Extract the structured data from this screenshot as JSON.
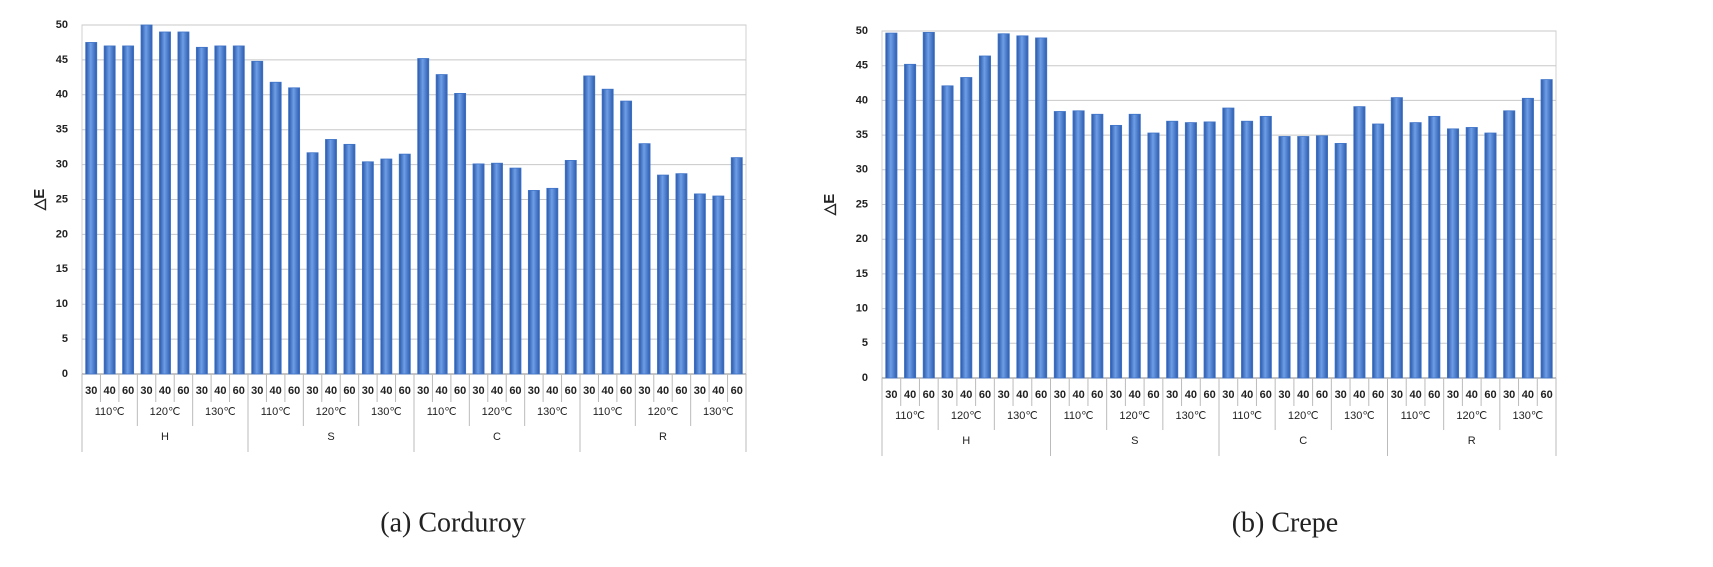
{
  "chart_data": [
    {
      "type": "bar",
      "caption": "(a)  Corduroy",
      "y_label": "△E",
      "categories": [
        "30",
        "40",
        "60",
        "30",
        "40",
        "60",
        "30",
        "40",
        "60",
        "30",
        "40",
        "60",
        "30",
        "40",
        "60",
        "30",
        "40",
        "60",
        "30",
        "40",
        "60",
        "30",
        "40",
        "60",
        "30",
        "40",
        "60",
        "30",
        "40",
        "60",
        "30",
        "40",
        "60",
        "30",
        "40",
        "60"
      ],
      "subcategories": [
        "110℃",
        "120℃",
        "130℃",
        "110℃",
        "120℃",
        "130℃",
        "110℃",
        "120℃",
        "130℃",
        "110℃",
        "120℃",
        "130℃"
      ],
      "groups": [
        "H",
        "S",
        "C",
        "R"
      ],
      "values": [
        47.5,
        47,
        47,
        50,
        49,
        49,
        46.8,
        47,
        47,
        44.8,
        41.8,
        41,
        31.7,
        33.6,
        32.9,
        30.4,
        30.8,
        31.5,
        45.2,
        42.9,
        40.2,
        30.1,
        30.2,
        29.5,
        26.3,
        26.6,
        30.6,
        42.7,
        40.8,
        39.1,
        33,
        28.5,
        28.7,
        25.8,
        25.5,
        31
      ],
      "color": "#3f74c8",
      "ylim": [
        0,
        50
      ],
      "yticks": [
        0,
        5,
        10,
        15,
        20,
        25,
        30,
        35,
        40,
        45,
        50
      ],
      "grid": true
    },
    {
      "type": "bar",
      "caption": "(b)  Crepe",
      "y_label": "△E",
      "categories": [
        "30",
        "40",
        "60",
        "30",
        "40",
        "60",
        "30",
        "40",
        "60",
        "30",
        "40",
        "60",
        "30",
        "40",
        "60",
        "30",
        "40",
        "60",
        "30",
        "40",
        "60",
        "30",
        "40",
        "60",
        "30",
        "40",
        "60",
        "30",
        "40",
        "60",
        "30",
        "40",
        "60",
        "30",
        "40",
        "60"
      ],
      "subcategories": [
        "110℃",
        "120℃",
        "130℃",
        "110℃",
        "120℃",
        "130℃",
        "110℃",
        "120℃",
        "130℃",
        "110℃",
        "120℃",
        "130℃"
      ],
      "groups": [
        "H",
        "S",
        "C",
        "R"
      ],
      "values": [
        49.7,
        45.2,
        49.8,
        42.1,
        43.3,
        46.4,
        49.6,
        49.3,
        49,
        38.4,
        38.5,
        38,
        36.4,
        38,
        35.3,
        37,
        36.8,
        36.9,
        38.9,
        37,
        37.7,
        34.8,
        34.8,
        34.9,
        33.8,
        39.1,
        36.6,
        40.4,
        36.8,
        37.7,
        35.9,
        36.1,
        35.3,
        38.5,
        40.3,
        43
      ],
      "color": "#3f74c8",
      "ylim": [
        0,
        50
      ],
      "yticks": [
        0,
        5,
        10,
        15,
        20,
        25,
        30,
        35,
        40,
        45,
        50
      ],
      "grid": true
    }
  ]
}
